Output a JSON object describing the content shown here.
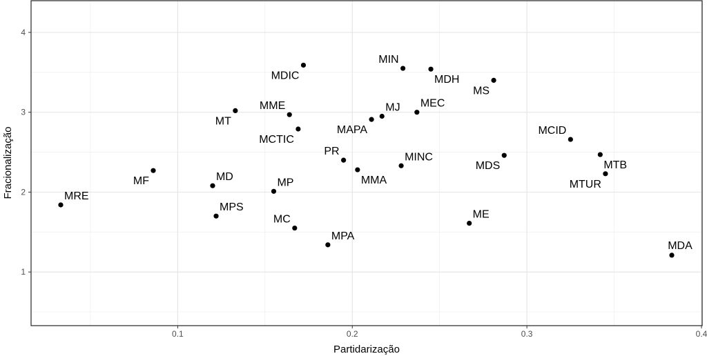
{
  "chart_data": {
    "type": "scatter",
    "title": "",
    "xlabel": "Partidarização",
    "ylabel": "Fracionalização",
    "xlim": [
      0.016,
      0.4004
    ],
    "ylim": [
      0.328,
      4.397
    ],
    "xticks": [
      0.1,
      0.2,
      0.3,
      0.4
    ],
    "xtick_labels": [
      "0.1",
      "0.2",
      "0.3",
      "0.4"
    ],
    "yticks": [
      1,
      2,
      3,
      4
    ],
    "ytick_labels": [
      "1",
      "2",
      "3",
      "4"
    ],
    "grid": true,
    "theme": "white background, light gray grid, black panel border",
    "point_color": "#000000",
    "points": [
      {
        "label": "MRE",
        "x": 0.033,
        "y": 1.84,
        "label_pos": "above-right"
      },
      {
        "label": "MF",
        "x": 0.086,
        "y": 2.27,
        "label_pos": "below-left"
      },
      {
        "label": "MD",
        "x": 0.12,
        "y": 2.08,
        "label_pos": "above-right"
      },
      {
        "label": "MPS",
        "x": 0.122,
        "y": 1.7,
        "label_pos": "above-right"
      },
      {
        "label": "MT",
        "x": 0.133,
        "y": 3.02,
        "label_pos": "below-left"
      },
      {
        "label": "MME",
        "x": 0.164,
        "y": 2.97,
        "label_pos": "above-left"
      },
      {
        "label": "MDIC",
        "x": 0.172,
        "y": 3.59,
        "label_pos": "below-left"
      },
      {
        "label": "MCTIC",
        "x": 0.169,
        "y": 2.79,
        "label_pos": "below-left"
      },
      {
        "label": "MC",
        "x": 0.167,
        "y": 1.55,
        "label_pos": "above-left"
      },
      {
        "label": "MP",
        "x": 0.155,
        "y": 2.01,
        "label_pos": "above-right"
      },
      {
        "label": "MPA",
        "x": 0.186,
        "y": 1.34,
        "label_pos": "above-right"
      },
      {
        "label": "PR",
        "x": 0.195,
        "y": 2.4,
        "label_pos": "above-left"
      },
      {
        "label": "MMA",
        "x": 0.203,
        "y": 2.28,
        "label_pos": "below-right"
      },
      {
        "label": "MAPA",
        "x": 0.211,
        "y": 2.91,
        "label_pos": "below-left"
      },
      {
        "label": "MJ",
        "x": 0.217,
        "y": 2.95,
        "label_pos": "above-right"
      },
      {
        "label": "MINC",
        "x": 0.228,
        "y": 2.33,
        "label_pos": "above-right"
      },
      {
        "label": "MIN",
        "x": 0.229,
        "y": 3.55,
        "label_pos": "above-left"
      },
      {
        "label": "MEC",
        "x": 0.237,
        "y": 3.0,
        "label_pos": "above-right"
      },
      {
        "label": "MDH",
        "x": 0.245,
        "y": 3.54,
        "label_pos": "below-right"
      },
      {
        "label": "MS",
        "x": 0.281,
        "y": 3.4,
        "label_pos": "below-left"
      },
      {
        "label": "ME",
        "x": 0.267,
        "y": 1.61,
        "label_pos": "above-right"
      },
      {
        "label": "MDS",
        "x": 0.287,
        "y": 2.46,
        "label_pos": "below-left"
      },
      {
        "label": "MCID",
        "x": 0.325,
        "y": 2.66,
        "label_pos": "above-left"
      },
      {
        "label": "MTB",
        "x": 0.342,
        "y": 2.47,
        "label_pos": "below-right"
      },
      {
        "label": "MTUR",
        "x": 0.345,
        "y": 2.23,
        "label_pos": "below-left"
      },
      {
        "label": "MDA",
        "x": 0.383,
        "y": 1.21,
        "label_pos": "above"
      }
    ]
  }
}
